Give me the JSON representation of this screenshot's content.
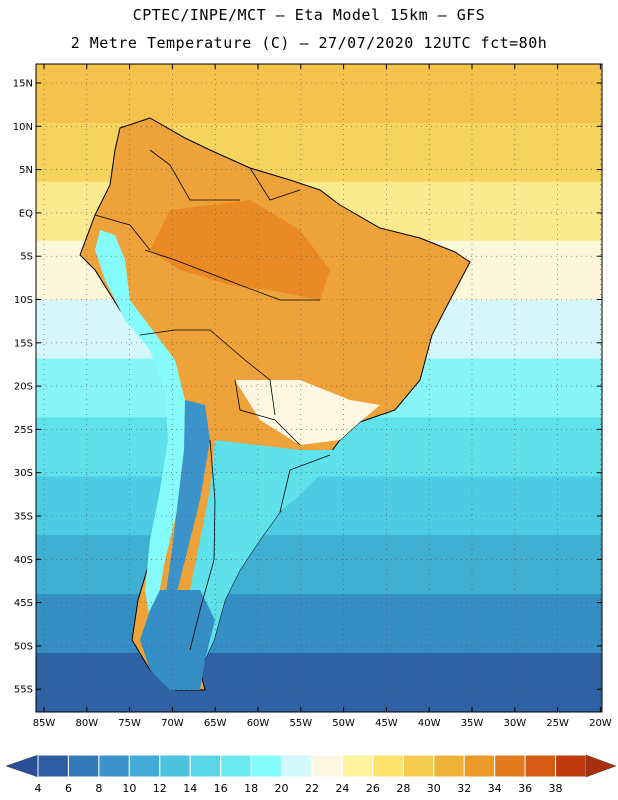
{
  "header": {
    "line1": "CPTEC/INPE/MCT –  Eta Model 15km – GFS",
    "line2": "2 Metre Temperature (C) – 27/07/2020 12UTC fct=80h"
  },
  "map": {
    "lat_labels": [
      "15N",
      "10N",
      "5N",
      "EQ",
      "5S",
      "10S",
      "15S",
      "20S",
      "25S",
      "30S",
      "35S",
      "40S",
      "45S",
      "50S",
      "55S"
    ],
    "lon_labels": [
      "85W",
      "80W",
      "75W",
      "70W",
      "65W",
      "60W",
      "55W",
      "50W",
      "45W",
      "40W",
      "35W",
      "30W",
      "25W",
      "20W"
    ],
    "ocean_bands": [
      {
        "color": "#f3c24a"
      },
      {
        "color": "#f6d35c"
      },
      {
        "color": "#fbe98e"
      },
      {
        "color": "#fdf7da"
      },
      {
        "color": "#d5f6fb"
      },
      {
        "color": "#87f4f7"
      },
      {
        "color": "#5fe1ec"
      },
      {
        "color": "#4ccbe2"
      },
      {
        "color": "#3fb0d4"
      },
      {
        "color": "#358fc4"
      },
      {
        "color": "#2e62a4"
      }
    ]
  },
  "colorbar": {
    "labels": [
      "4",
      "6",
      "8",
      "10",
      "12",
      "14",
      "16",
      "18",
      "20",
      "22",
      "24",
      "26",
      "28",
      "30",
      "32",
      "34",
      "36",
      "38"
    ],
    "colors": [
      "#2e5da6",
      "#3479b9",
      "#3c93c9",
      "#44abd6",
      "#4bc3df",
      "#58d6e6",
      "#6aeaee",
      "#86fbfb",
      "#d2f8fc",
      "#fdf7e1",
      "#fdf39a",
      "#fae26c",
      "#f4cd50",
      "#eeb43a",
      "#eb9a28",
      "#e37a1d",
      "#d65c15",
      "#bf3b0d"
    ]
  }
}
